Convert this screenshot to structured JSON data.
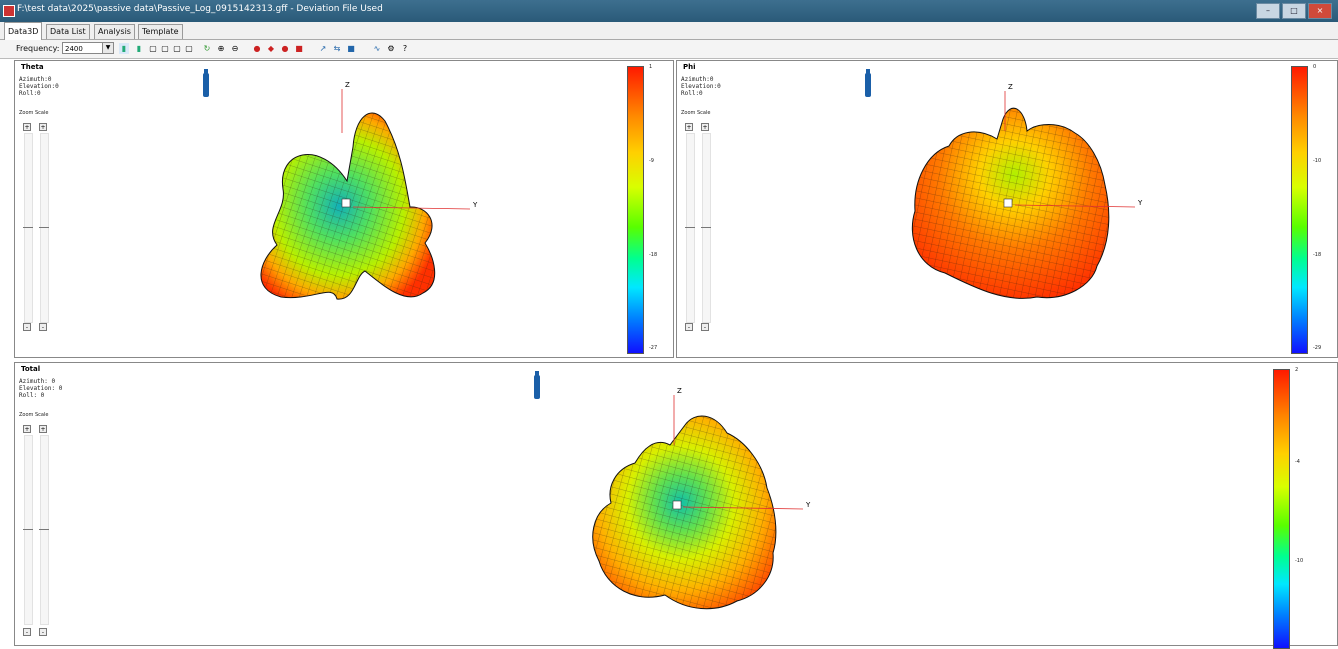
{
  "window": {
    "title": "F:\\test data\\2025\\passive data\\Passive_Log_0915142313.gff - Deviation File Used"
  },
  "tabs": [
    {
      "label": "Data3D"
    },
    {
      "label": "Data List"
    },
    {
      "label": "Analysis"
    },
    {
      "label": "Template"
    }
  ],
  "toolbar": {
    "frequency_label": "Frequency:",
    "frequency_value": "2400"
  },
  "panels": {
    "theta": {
      "title": "Theta",
      "azimuth": "Azimuth:0",
      "elevation": "Elevation:0",
      "roll": "Roll:0",
      "zoom_scale": "Zoom Scale",
      "axes": {
        "z": "Z",
        "y": "Y"
      },
      "colorbar_ticks": [
        "1",
        "-9",
        "-18",
        "-27"
      ]
    },
    "phi": {
      "title": "Phi",
      "azimuth": "Azimuth:0",
      "elevation": "Elevation:0",
      "roll": "Roll:0",
      "zoom_scale": "Zoom Scale",
      "axes": {
        "z": "Z",
        "y": "Y"
      },
      "colorbar_ticks": [
        "0",
        "-10",
        "-18",
        "-29"
      ]
    },
    "total": {
      "title": "Total",
      "azimuth": "Azimuth: 0",
      "elevation": "Elevation: 0",
      "roll": "Roll: 0",
      "zoom_scale": "Zoom Scale",
      "axes": {
        "z": "Z",
        "y": "Y"
      },
      "colorbar_ticks": [
        "2",
        "-4",
        "-10"
      ]
    }
  },
  "colors": {
    "hot": "#ff2a00",
    "mid": "#e8e000",
    "cool": "#00b0a0",
    "accent": "#1a5fa8"
  }
}
